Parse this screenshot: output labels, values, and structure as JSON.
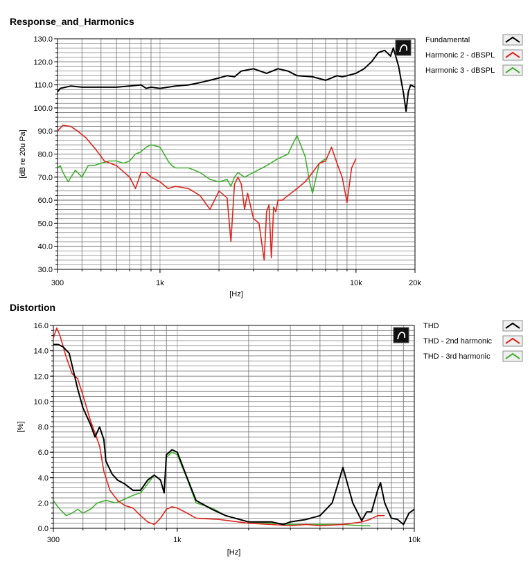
{
  "chart_data": [
    {
      "type": "line",
      "title": "Response_and_Harmonics",
      "xlabel": "[Hz]",
      "ylabel": "[dB re 20u Pa]",
      "x_scale": "log",
      "xlim": [
        300,
        20000
      ],
      "ylim": [
        30,
        130
      ],
      "x_tick_values": [
        300,
        1000,
        10000,
        20000
      ],
      "x_tick_labels": [
        "300",
        "1k",
        "10k",
        "20k"
      ],
      "y_tick_values": [
        30,
        40,
        50,
        60,
        70,
        80,
        90,
        100,
        110,
        120,
        130
      ],
      "y_tick_labels": [
        "30.0",
        "40.0",
        "50.0",
        "60.0",
        "70.0",
        "80.0",
        "90.0",
        "100.0",
        "110.0",
        "120.0",
        "130.0"
      ],
      "grid": true,
      "legend_position": "right",
      "legend": [
        "Fundamental",
        "Harmonic 2 - dBSPL",
        "Harmonic 3 - dBSPL"
      ],
      "series": [
        {
          "name": "Fundamental",
          "color": "#000000",
          "x": [
            300,
            310,
            350,
            400,
            500,
            600,
            700,
            800,
            850,
            900,
            1000,
            1100,
            1200,
            1400,
            1600,
            1800,
            2000,
            2200,
            2400,
            2600,
            3000,
            3500,
            4000,
            4500,
            5000,
            6000,
            7000,
            7500,
            8000,
            8500,
            9000,
            10000,
            11000,
            12000,
            13000,
            14000,
            15000,
            15500,
            16000,
            16500,
            17000,
            17500,
            18000,
            18500,
            19000,
            20000
          ],
          "y": [
            107,
            108.5,
            109.5,
            109,
            109,
            109,
            109.5,
            110,
            108.5,
            109,
            108.5,
            109,
            109.5,
            110,
            111,
            112,
            113,
            114,
            113.5,
            116,
            117,
            115,
            117,
            116,
            114,
            113.5,
            112,
            113,
            114,
            113.5,
            114,
            115,
            117,
            120,
            124,
            125,
            122.5,
            126,
            122,
            118,
            112,
            106,
            98.5,
            107,
            110,
            109
          ]
        },
        {
          "name": "Harmonic 2 - dBSPL",
          "color": "#e0241c",
          "x": [
            300,
            320,
            350,
            380,
            420,
            470,
            520,
            600,
            700,
            750,
            800,
            850,
            900,
            1000,
            1100,
            1200,
            1400,
            1600,
            1800,
            2000,
            2200,
            2300,
            2400,
            2500,
            2600,
            2700,
            2800,
            3000,
            3200,
            3400,
            3500,
            3600,
            3700,
            3800,
            3900,
            4000,
            4200,
            4500,
            5000,
            5500,
            6000,
            6500,
            7000,
            7500,
            8000,
            8500,
            9000,
            9500,
            10000
          ],
          "y": [
            90,
            92.5,
            92,
            90,
            87,
            82,
            77,
            75,
            70,
            65,
            72,
            72,
            70,
            68,
            65,
            66,
            65,
            62,
            56,
            64,
            61,
            42,
            67,
            70,
            67,
            56,
            63,
            52,
            50,
            34,
            55,
            58,
            35,
            57,
            55,
            60,
            60,
            62,
            65,
            68,
            72,
            76,
            77,
            83,
            76,
            70,
            59,
            74,
            78
          ]
        },
        {
          "name": "Harmonic 3 - dBSPL",
          "color": "#40b030",
          "x": [
            300,
            310,
            320,
            340,
            370,
            400,
            430,
            460,
            500,
            550,
            600,
            650,
            700,
            750,
            800,
            850,
            900,
            1000,
            1050,
            1100,
            1150,
            1200,
            1400,
            1600,
            1800,
            2000,
            2200,
            2300,
            2400,
            2500,
            2700,
            3000,
            3500,
            4000,
            4500,
            4800,
            5000,
            5500,
            5800,
            6000,
            6500,
            7000
          ],
          "y": [
            74,
            75,
            72,
            68,
            73,
            70,
            75,
            75,
            76,
            77,
            77,
            76,
            77,
            80,
            81,
            83,
            84,
            83,
            80,
            77,
            75,
            74,
            74,
            72,
            69,
            68,
            69,
            66,
            70,
            72,
            70,
            72,
            75,
            78,
            80,
            85,
            88,
            79,
            68,
            63,
            76,
            78
          ]
        }
      ]
    },
    {
      "type": "line",
      "title": "Distortion",
      "xlabel": "[Hz]",
      "ylabel": "[%]",
      "x_scale": "log",
      "xlim": [
        300,
        10000
      ],
      "ylim": [
        0,
        16
      ],
      "x_tick_values": [
        300,
        1000,
        10000
      ],
      "x_tick_labels": [
        "300",
        "1k",
        "10k"
      ],
      "y_tick_values": [
        0,
        2,
        4,
        6,
        8,
        10,
        12,
        14,
        16
      ],
      "y_tick_labels": [
        "0.0",
        "2.0",
        "4.0",
        "6.0",
        "8.0",
        "10.0",
        "12.0",
        "14.0",
        "16.0"
      ],
      "grid": true,
      "legend_position": "right",
      "legend": [
        "THD",
        "THD - 2nd harmonic",
        "THD - 3rd harmonic"
      ],
      "series": [
        {
          "name": "THD",
          "color": "#000000",
          "x": [
            300,
            315,
            330,
            350,
            380,
            400,
            430,
            450,
            470,
            490,
            500,
            530,
            560,
            600,
            650,
            700,
            750,
            800,
            850,
            880,
            900,
            950,
            1000,
            1100,
            1200,
            1400,
            1600,
            2000,
            2500,
            2800,
            3000,
            3500,
            4000,
            4500,
            5000,
            5500,
            6000,
            6300,
            6600,
            7000,
            7200,
            7500,
            8000,
            8500,
            9000,
            9500,
            10000
          ],
          "y": [
            14.5,
            14.5,
            14.3,
            13.8,
            11,
            9.5,
            8.2,
            7.2,
            8.0,
            7.0,
            5.3,
            4.3,
            3.8,
            3.5,
            3.0,
            3.0,
            3.8,
            4.2,
            3.8,
            2.8,
            5.8,
            6.2,
            6.0,
            4.0,
            2.2,
            1.5,
            1.0,
            0.5,
            0.5,
            0.3,
            0.5,
            0.7,
            1.0,
            2.0,
            4.8,
            2.0,
            0.6,
            1.3,
            1.3,
            3.0,
            3.6,
            2.0,
            0.8,
            0.7,
            0.3,
            1.2,
            1.5
          ]
        },
        {
          "name": "THD - 2nd harmonic",
          "color": "#e0241c",
          "x": [
            300,
            310,
            320,
            340,
            360,
            380,
            400,
            430,
            450,
            470,
            490,
            520,
            560,
            600,
            650,
            700,
            750,
            800,
            850,
            900,
            950,
            1000,
            1100,
            1200,
            1500,
            2000,
            2500,
            3000,
            3500,
            4000,
            5000,
            6000,
            6500,
            7000,
            7500
          ],
          "y": [
            15,
            15.8,
            15.2,
            13.5,
            12.2,
            11.8,
            10.5,
            8.5,
            7.5,
            6.5,
            4.5,
            3.0,
            2.2,
            1.8,
            1.6,
            1.0,
            0.5,
            0.3,
            0.8,
            1.5,
            1.7,
            1.6,
            1.2,
            0.8,
            0.7,
            0.4,
            0.3,
            0.2,
            0.3,
            0.2,
            0.3,
            0.5,
            0.7,
            1.0,
            1.0
          ]
        },
        {
          "name": "THD - 3rd harmonic",
          "color": "#40b030",
          "x": [
            300,
            310,
            320,
            340,
            360,
            380,
            400,
            430,
            460,
            500,
            550,
            600,
            650,
            700,
            750,
            800,
            850,
            880,
            900,
            950,
            1000,
            1100,
            1200,
            1400,
            1600,
            2000,
            2500,
            3000,
            4000,
            5000,
            6000,
            6500
          ],
          "y": [
            2.2,
            1.8,
            1.5,
            1.0,
            1.2,
            1.5,
            1.2,
            1.5,
            2.0,
            2.2,
            2.0,
            2.3,
            2.6,
            2.8,
            3.5,
            4.2,
            3.8,
            2.8,
            5.6,
            6.0,
            5.8,
            3.9,
            2.0,
            1.6,
            1.0,
            0.5,
            0.4,
            0.3,
            0.3,
            0.3,
            0.2,
            0.2
          ]
        }
      ]
    }
  ]
}
